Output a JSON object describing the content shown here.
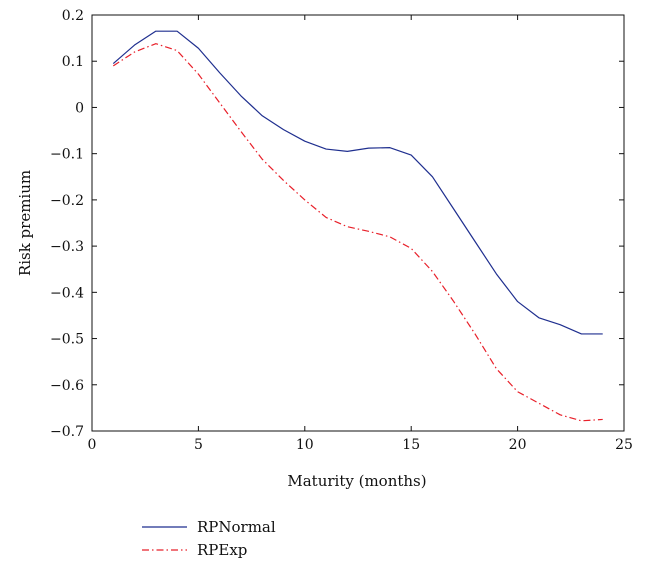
{
  "chart_data": {
    "type": "line",
    "title": "",
    "xlabel": "Maturity (months)",
    "ylabel": "Risk premium",
    "xlim": [
      0,
      25
    ],
    "ylim": [
      -0.7,
      0.2
    ],
    "xticks": [
      0,
      5,
      10,
      15,
      20,
      25
    ],
    "yticks": [
      0.2,
      0.1,
      0,
      -0.1,
      -0.2,
      -0.3,
      -0.4,
      -0.5,
      -0.6,
      -0.7
    ],
    "xtick_labels": [
      "0",
      "5",
      "10",
      "15",
      "20",
      "25"
    ],
    "ytick_labels": [
      "0.2",
      "0.1",
      "0",
      "−0.1",
      "−0.2",
      "−0.3",
      "−0.4",
      "−0.5",
      "−0.6",
      "−0.7"
    ],
    "grid": false,
    "legend_position": "bottom-left",
    "x": [
      1,
      2,
      3,
      4,
      5,
      6,
      7,
      8,
      9,
      10,
      11,
      12,
      13,
      14,
      15,
      16,
      17,
      18,
      19,
      20,
      21,
      22,
      23,
      24
    ],
    "series": [
      {
        "name": "RPNormal",
        "color": "#1f2f8f",
        "style": "solid",
        "values": [
          0.095,
          0.135,
          0.165,
          0.165,
          0.128,
          0.075,
          0.025,
          -0.018,
          -0.048,
          -0.073,
          -0.09,
          -0.095,
          -0.088,
          -0.087,
          -0.103,
          -0.15,
          -0.22,
          -0.29,
          -0.36,
          -0.42,
          -0.455,
          -0.47,
          -0.49,
          -0.49
        ]
      },
      {
        "name": "RPExp",
        "color": "#e8202a",
        "style": "dashdot",
        "values": [
          0.09,
          0.12,
          0.138,
          0.123,
          0.072,
          0.01,
          -0.052,
          -0.112,
          -0.158,
          -0.2,
          -0.238,
          -0.258,
          -0.268,
          -0.28,
          -0.305,
          -0.355,
          -0.42,
          -0.49,
          -0.565,
          -0.615,
          -0.64,
          -0.665,
          -0.678,
          -0.675
        ]
      }
    ]
  }
}
